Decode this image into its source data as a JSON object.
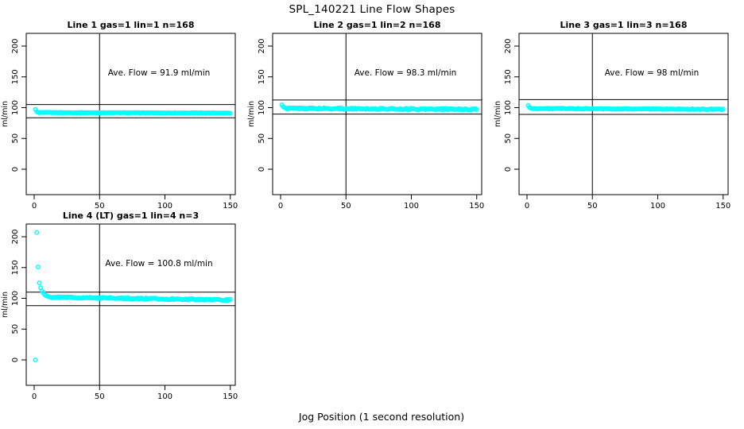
{
  "title": "SPL_140221  Line Flow Shapes",
  "xlabel": "Jog Position (1 second resolution)",
  "ylabel": "ml/min",
  "colors": {
    "points": "#00ffff",
    "axis": "#000000",
    "background": "#ffffff"
  },
  "axes": {
    "x_ticks": [
      0,
      50,
      100,
      150
    ],
    "y_ticks": [
      0,
      50,
      100,
      150,
      200
    ],
    "xlim": [
      0,
      155
    ],
    "ylim": [
      -40,
      220
    ]
  },
  "chart_data": [
    {
      "type": "scatter",
      "title": "Line 1 gas=1 lin=1 n=168",
      "annotation": "Ave. Flow =  91.9  ml/min",
      "ave_flow_ml_min": 91.9,
      "n": 168,
      "vline_x": 50,
      "ref_lines_y": [
        105,
        83.5
      ],
      "start_points": [
        [
          1,
          97
        ],
        [
          2,
          93.5
        ]
      ],
      "plateau": {
        "x_from": 3,
        "x_to": 150,
        "n": 160,
        "y_from": 92,
        "y_to": 91.3,
        "noise": 0.5
      }
    },
    {
      "type": "scatter",
      "title": "Line 2 gas=1 lin=2 n=168",
      "annotation": "Ave. Flow =  98.3  ml/min",
      "ave_flow_ml_min": 98.3,
      "n": 168,
      "vline_x": 50,
      "ref_lines_y": [
        112.5,
        89.5
      ],
      "start_points": [
        [
          1,
          104.5
        ],
        [
          2,
          101.5
        ],
        [
          3,
          100
        ],
        [
          4,
          99.3
        ]
      ],
      "plateau": {
        "x_from": 5,
        "x_to": 150,
        "n": 160,
        "y_from": 98.8,
        "y_to": 97.2,
        "noise": 1.2
      }
    },
    {
      "type": "scatter",
      "title": "Line 3 gas=1 lin=3 n=168",
      "annotation": "Ave. Flow =  98  ml/min",
      "ave_flow_ml_min": 98,
      "n": 168,
      "vline_x": 50,
      "ref_lines_y": [
        113,
        89
      ],
      "start_points": [
        [
          1,
          103.5
        ],
        [
          2,
          100.5
        ],
        [
          3,
          99.2
        ]
      ],
      "plateau": {
        "x_from": 4,
        "x_to": 150,
        "n": 160,
        "y_from": 98.5,
        "y_to": 97.3,
        "noise": 0.7
      }
    },
    {
      "type": "scatter",
      "title": "Line 4 (LT) gas=1 lin=4 n=3",
      "annotation": "Ave. Flow =  100.8  ml/min",
      "ave_flow_ml_min": 100.8,
      "n": 3,
      "vline_x": 50,
      "ref_lines_y": [
        110,
        88
      ],
      "start_points": [
        [
          1,
          0
        ],
        [
          2,
          207
        ],
        [
          3,
          151
        ],
        [
          4,
          125
        ],
        [
          5,
          117
        ],
        [
          6,
          112
        ],
        [
          7,
          108.5
        ],
        [
          8,
          106
        ],
        [
          9,
          104.5
        ],
        [
          10,
          103.5
        ],
        [
          11,
          102.8
        ],
        [
          12,
          102.2
        ]
      ],
      "plateau": {
        "x_from": 13,
        "x_to": 150,
        "n": 150,
        "y_from": 101.8,
        "y_to": 97.3,
        "noise": 1.1
      }
    }
  ]
}
